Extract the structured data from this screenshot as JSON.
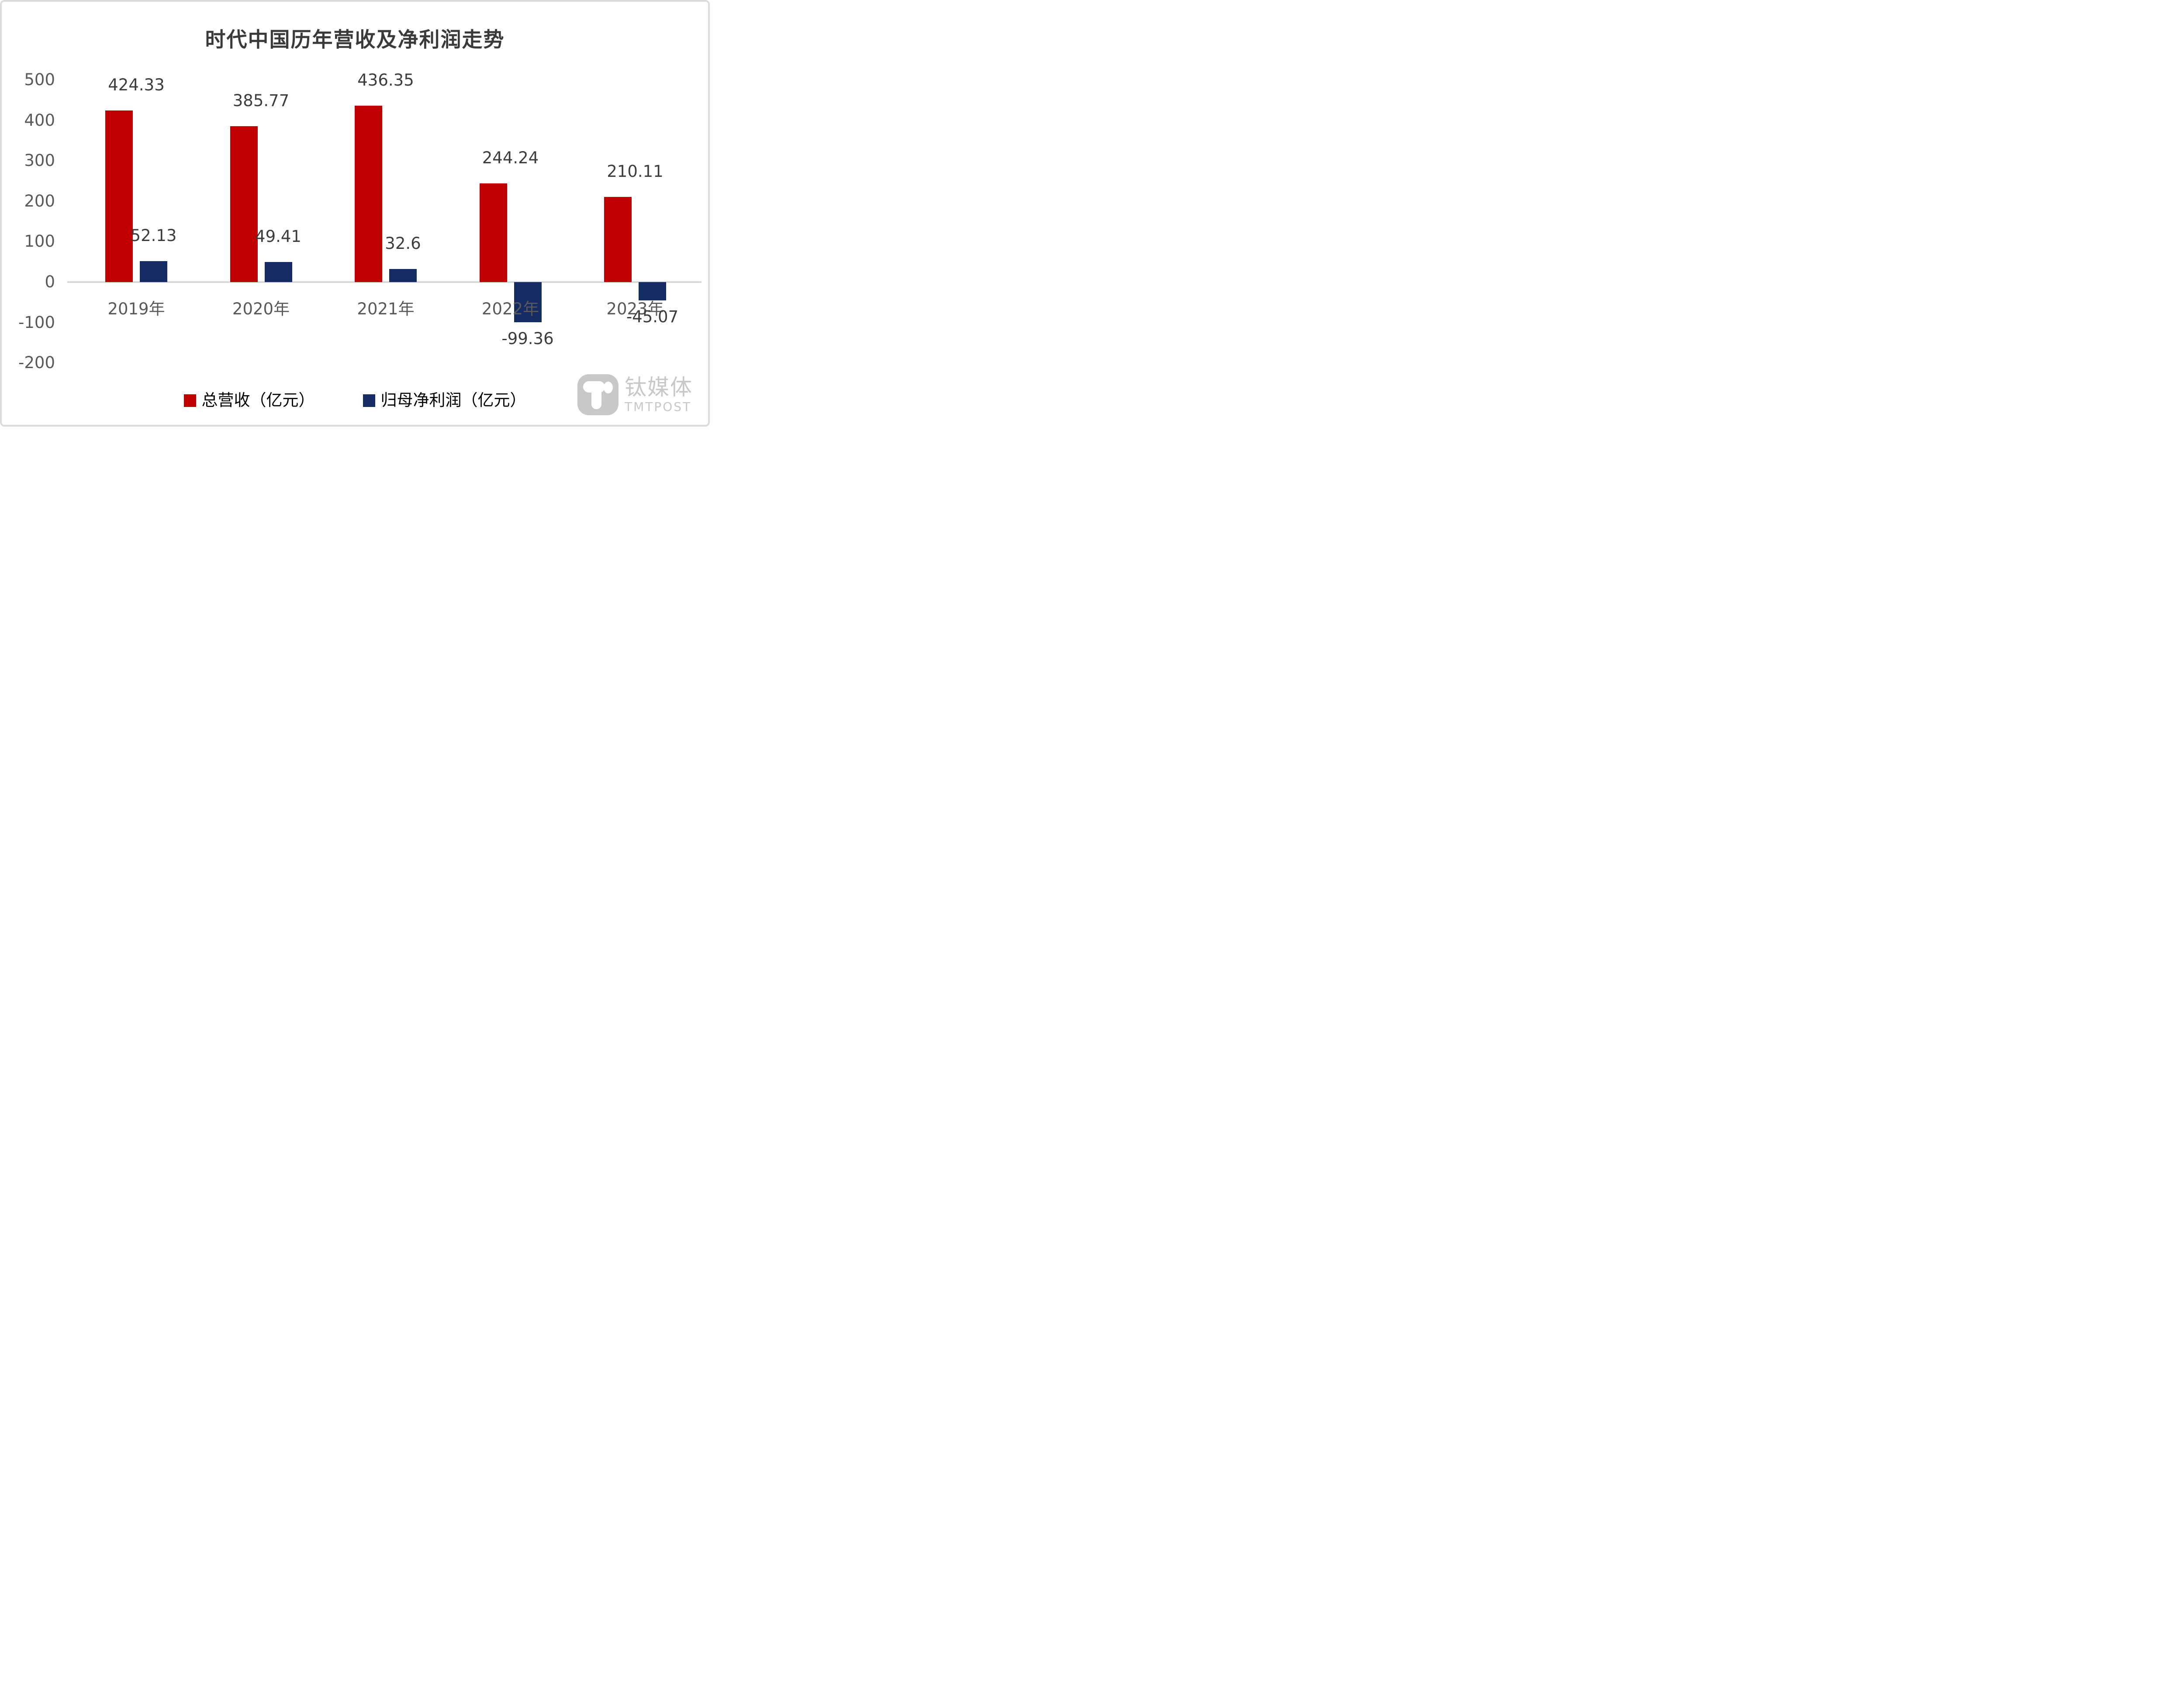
{
  "chart_data": {
    "type": "bar",
    "title": "时代中国历年营收及净利润走势",
    "categories": [
      "2019年",
      "2020年",
      "2021年",
      "2022年",
      "2023年"
    ],
    "series": [
      {
        "name": "总营收（亿元）",
        "color": "#c00000",
        "values": [
          424.33,
          385.77,
          436.35,
          244.24,
          210.11
        ]
      },
      {
        "name": "归母净利润（亿元）",
        "color": "#152b63",
        "values": [
          52.13,
          49.41,
          32.6,
          -99.36,
          -45.07
        ]
      }
    ],
    "data_labels": [
      [
        "424.33",
        "385.77",
        "436.35",
        "244.24",
        "210.11"
      ],
      [
        "52.13",
        "49.41",
        "32.6",
        "-99.36",
        "-45.07"
      ]
    ],
    "y_axis": {
      "ticks": [
        "500",
        "400",
        "300",
        "200",
        "100",
        "0",
        "-100",
        "-200"
      ],
      "min": -200,
      "max": 500,
      "grid": false
    },
    "legend_position": "bottom",
    "colors": {
      "title_text": "#3a3a3a",
      "axis_text": "#595959",
      "label_text": "#3d3d3d",
      "zero_line": "#d9d9d9"
    }
  },
  "watermark": {
    "cn_text": "钛媒体",
    "en_text": "TMTPOST",
    "color": "#c8c8c8",
    "icon": "tmtpost-t-logo"
  }
}
